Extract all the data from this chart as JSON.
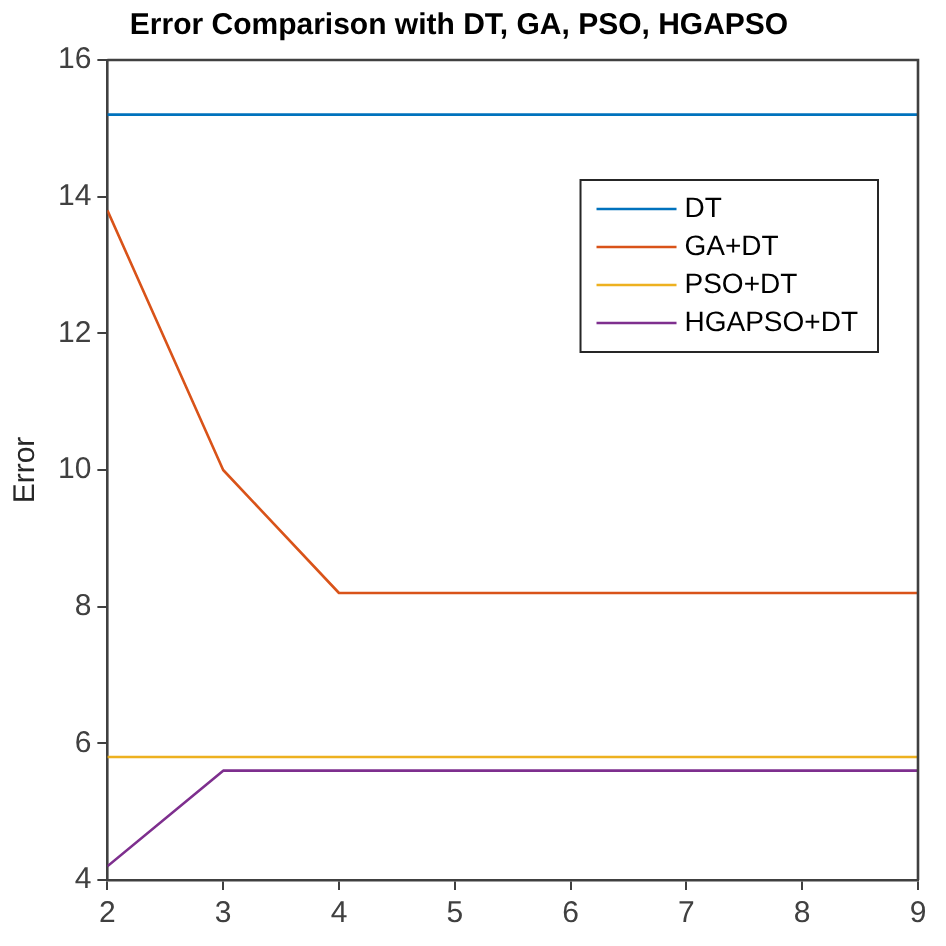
{
  "chart_data": {
    "type": "line",
    "title": "Error Comparison with DT, GA, PSO, HGAPSO",
    "ylabel": "Error",
    "x": [
      2,
      3,
      4,
      5,
      6,
      7,
      8,
      9
    ],
    "series": [
      {
        "name": "DT",
        "color": "#0072bd",
        "values": [
          15.2,
          15.2,
          15.2,
          15.2,
          15.2,
          15.2,
          15.2,
          15.2
        ]
      },
      {
        "name": "GA+DT",
        "color": "#d95319",
        "values": [
          13.8,
          10,
          8.2,
          8.2,
          8.2,
          8.2,
          8.2,
          8.2
        ]
      },
      {
        "name": "PSO+DT",
        "color": "#edb120",
        "values": [
          5.8,
          5.8,
          5.8,
          5.8,
          5.8,
          5.8,
          5.8,
          5.8
        ]
      },
      {
        "name": "HGAPSO+DT",
        "color": "#7e2f8e",
        "values": [
          4.2,
          5.6,
          5.6,
          5.6,
          5.6,
          5.6,
          5.6,
          5.6
        ]
      }
    ],
    "xlim": [
      2,
      9
    ],
    "xticks": [
      2,
      3,
      4,
      5,
      6,
      7,
      8,
      9
    ],
    "ylim": [
      4,
      16
    ],
    "yticks": [
      4,
      6,
      8,
      10,
      12,
      14,
      16
    ],
    "grid": false,
    "legend": "top right",
    "marker": "none",
    "line_style": "solid"
  }
}
